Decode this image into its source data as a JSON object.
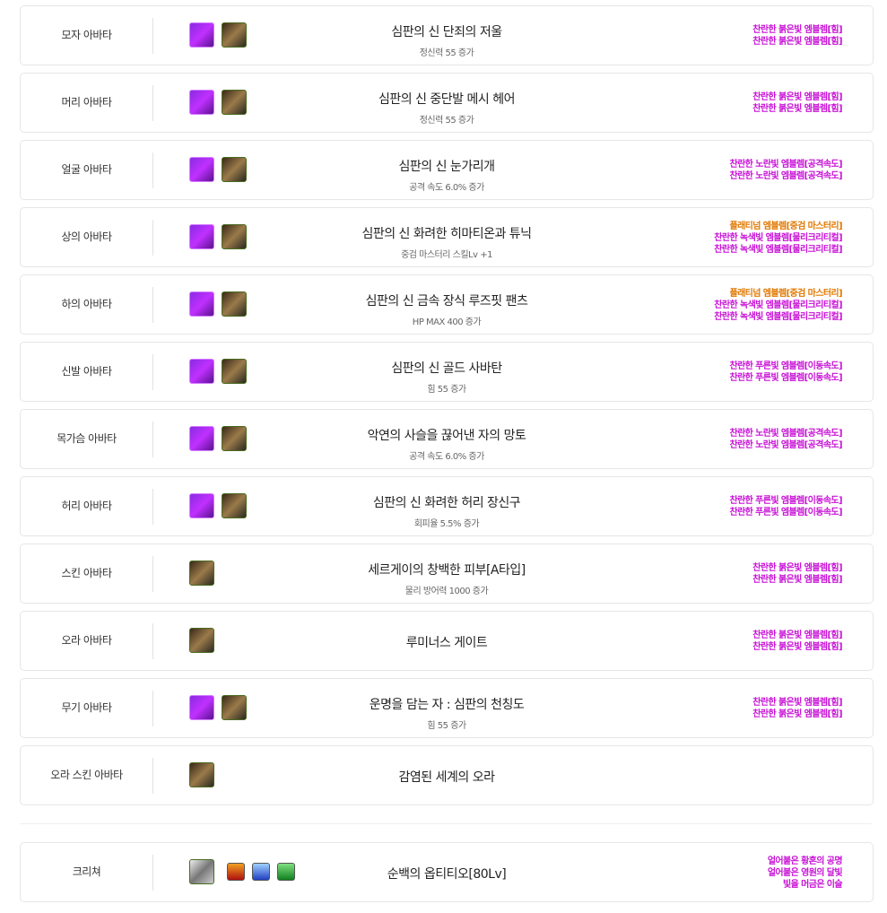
{
  "colors": {
    "emblem": "#c812d6",
    "platinum": "#e07800"
  },
  "rows": [
    {
      "slot": "모자 아바타",
      "clone": true,
      "name": "심판의 신 단죄의 저울",
      "desc": "정신력 55 증가",
      "emblems": [
        {
          "text": "찬란한 붉은빛 엠블렘[힘]",
          "type": "emblem"
        },
        {
          "text": "찬란한 붉은빛 엠블렘[힘]",
          "type": "emblem"
        }
      ]
    },
    {
      "slot": "머리 아바타",
      "clone": true,
      "name": "심판의 신 중단발 메시 헤어",
      "desc": "정신력 55 증가",
      "emblems": [
        {
          "text": "찬란한 붉은빛 엠블렘[힘]",
          "type": "emblem"
        },
        {
          "text": "찬란한 붉은빛 엠블렘[힘]",
          "type": "emblem"
        }
      ]
    },
    {
      "slot": "얼굴 아바타",
      "clone": true,
      "name": "심판의 신 눈가리개",
      "desc": "공격 속도 6.0% 증가",
      "emblems": [
        {
          "text": "찬란한 노란빛 엠블렘[공격속도]",
          "type": "emblem"
        },
        {
          "text": "찬란한 노란빛 엠블렘[공격속도]",
          "type": "emblem"
        }
      ]
    },
    {
      "slot": "상의 아바타",
      "clone": true,
      "name": "심판의 신 화려한 히마티온과 튜닉",
      "desc": "중검 마스터리 스킬Lv +1",
      "emblems": [
        {
          "text": "플래티넘 엠블렘[중검 마스터리]",
          "type": "platinum"
        },
        {
          "text": "찬란한 녹색빛 엠블렘[물리크리티컬]",
          "type": "emblem"
        },
        {
          "text": "찬란한 녹색빛 엠블렘[물리크리티컬]",
          "type": "emblem"
        }
      ]
    },
    {
      "slot": "하의 아바타",
      "clone": true,
      "name": "심판의 신 금속 장식 루즈핏 팬츠",
      "desc": "HP MAX 400 증가",
      "emblems": [
        {
          "text": "플래티넘 엠블렘[중검 마스터리]",
          "type": "platinum"
        },
        {
          "text": "찬란한 녹색빛 엠블렘[물리크리티컬]",
          "type": "emblem"
        },
        {
          "text": "찬란한 녹색빛 엠블렘[물리크리티컬]",
          "type": "emblem"
        }
      ]
    },
    {
      "slot": "신발 아바타",
      "clone": true,
      "name": "심판의 신 골드 사바탄",
      "desc": "힘 55 증가",
      "emblems": [
        {
          "text": "찬란한 푸른빛 엠블렘[이동속도]",
          "type": "emblem"
        },
        {
          "text": "찬란한 푸른빛 엠블렘[이동속도]",
          "type": "emblem"
        }
      ]
    },
    {
      "slot": "목가슴 아바타",
      "clone": true,
      "name": "악연의 사슬을 끊어낸 자의 망토",
      "desc": "공격 속도 6.0% 증가",
      "emblems": [
        {
          "text": "찬란한 노란빛 엠블렘[공격속도]",
          "type": "emblem"
        },
        {
          "text": "찬란한 노란빛 엠블렘[공격속도]",
          "type": "emblem"
        }
      ]
    },
    {
      "slot": "허리 아바타",
      "clone": true,
      "name": "심판의 신 화려한 허리 장신구",
      "desc": "회피율 5.5% 증가",
      "emblems": [
        {
          "text": "찬란한 푸른빛 엠블렘[이동속도]",
          "type": "emblem"
        },
        {
          "text": "찬란한 푸른빛 엠블렘[이동속도]",
          "type": "emblem"
        }
      ]
    },
    {
      "slot": "스킨 아바타",
      "clone": false,
      "name": "세르게이의 창백한 피부[A타입]",
      "desc": "물리 방어력 1000 증가",
      "emblems": [
        {
          "text": "찬란한 붉은빛 엠블렘[힘]",
          "type": "emblem"
        },
        {
          "text": "찬란한 붉은빛 엠블렘[힘]",
          "type": "emblem"
        }
      ]
    },
    {
      "slot": "오라 아바타",
      "clone": false,
      "name": "루미너스 게이트",
      "desc": "",
      "emblems": [
        {
          "text": "찬란한 붉은빛 엠블렘[힘]",
          "type": "emblem"
        },
        {
          "text": "찬란한 붉은빛 엠블렘[힘]",
          "type": "emblem"
        }
      ]
    },
    {
      "slot": "무기 아바타",
      "clone": true,
      "name": "운명을 담는 자 : 심판의 천칭도",
      "desc": "힘 55 증가",
      "emblems": [
        {
          "text": "찬란한 붉은빛 엠블렘[힘]",
          "type": "emblem"
        },
        {
          "text": "찬란한 붉은빛 엠블렘[힘]",
          "type": "emblem"
        }
      ]
    },
    {
      "slot": "오라 스킨 아바타",
      "clone": false,
      "name": "감염된 세계의 오라",
      "desc": "",
      "emblems": []
    }
  ],
  "creature": {
    "slot": "크리쳐",
    "name": "순백의 옵티티오[80Lv]",
    "artifacts": [
      "red-artifact",
      "blue-artifact",
      "green-artifact"
    ],
    "emblems": [
      "얼어붙은 황혼의 공명",
      "얼어붙은 영원의 달빛",
      "빛을 머금은 이슬"
    ]
  }
}
